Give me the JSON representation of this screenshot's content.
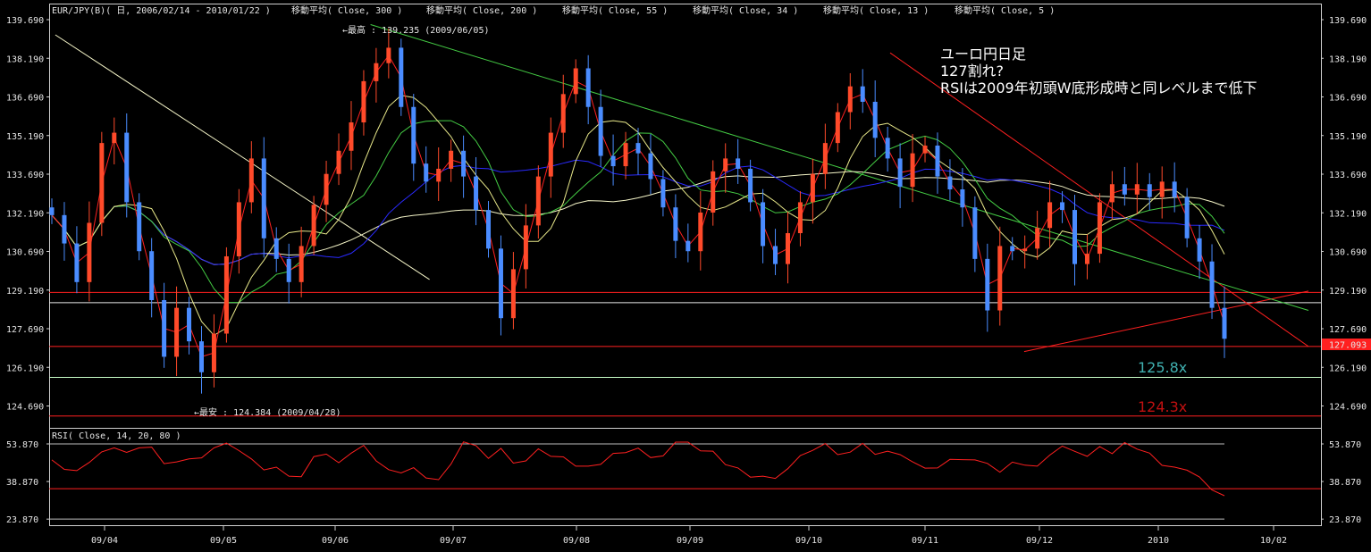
{
  "header": {
    "symbol": "EUR/JPY(B)( 日, 2006/02/14 - 2010/01/22 )",
    "ma300": "移動平均( Close, 300 )",
    "ma200": "移動平均( Close, 200 )",
    "ma55": "移動平均( Close, 55 )",
    "ma34": "移動平均( Close, 34 )",
    "ma13": "移動平均( Close, 13 )",
    "ma5": "移動平均( Close, 5 )"
  },
  "annotations": {
    "high": "←最高 : 139.235 (2009/06/05)",
    "low": "←最安 : 124.384 (2009/04/28)",
    "note1": "ユーロ円日足",
    "note2": "127割れ?",
    "note3": "RSIは2009年初頭W底形成時と同レベルまで低下",
    "target1": "125.8x",
    "target2": "124.3x",
    "current_price": "127.093"
  },
  "rsi_panel": {
    "title": "RSI( Close, 14, 20, 80 )",
    "ticks": [
      "53.870",
      "38.870",
      "23.870"
    ]
  },
  "colors": {
    "background": "#000000",
    "bull_candle": "#ff4a2a",
    "bear_candle": "#4a8cff",
    "ma300": "#f5f5c8",
    "ma200": "#2a2aff",
    "ma55": "#44cc44",
    "ma34": "#e8e88a",
    "ma13": "#e8f090",
    "ma5": "#ff2020",
    "rsi": "#ff2020",
    "hline_red": "#ff2020",
    "hline_white": "#ffffff",
    "hline_green": "#c8ffc8",
    "target1": "#40b0b0",
    "target2": "#c01010"
  },
  "chart_data": {
    "type": "candlestick",
    "title": "EUR/JPY(B)( 日, 2006/02/14 - 2010/01/22 )",
    "y_ticks": [
      "139.690",
      "138.190",
      "136.690",
      "135.190",
      "133.690",
      "132.190",
      "130.690",
      "129.190",
      "127.690",
      "126.190",
      "124.690"
    ],
    "ylim": [
      123.9,
      140.3
    ],
    "x_ticks": [
      "09/04",
      "09/05",
      "09/06",
      "09/07",
      "09/08",
      "09/09",
      "09/10",
      "09/11",
      "09/12",
      "2010",
      "10/02"
    ],
    "horizontal_lines": [
      {
        "value": 129.1,
        "color": "red"
      },
      {
        "value": 128.7,
        "color": "white"
      },
      {
        "value": 127.0,
        "color": "red"
      },
      {
        "value": 125.8,
        "color": "green"
      },
      {
        "value": 124.3,
        "color": "red"
      }
    ],
    "trendlines": [
      {
        "color": "red",
        "from": [
          "2009/10/22",
          138.4
        ],
        "to": [
          "2010/02/10",
          127.0
        ]
      },
      {
        "color": "red",
        "from": [
          "2009/11/27",
          126.8
        ],
        "to": [
          "2010/02/10",
          129.15
        ]
      },
      {
        "color": "green",
        "from": [
          "2009/06/10",
          139.5
        ],
        "to": [
          "2010/02/10",
          128.4
        ]
      },
      {
        "color": "beige",
        "from": [
          "2009/03/02",
          139.1
        ],
        "to": [
          "2009/06/25",
          129.6
        ]
      }
    ],
    "series": [
      {
        "name": "Close",
        "values": [
          132.1,
          131.0,
          129.5,
          131.8,
          134.9,
          135.3,
          132.6,
          130.7,
          128.8,
          126.6,
          128.5,
          127.2,
          126.0,
          127.5,
          130.5,
          132.6,
          134.3,
          131.2,
          130.4,
          129.5,
          130.9,
          132.5,
          133.7,
          134.6,
          135.7,
          137.3,
          138.0,
          138.6,
          136.3,
          134.1,
          133.4,
          133.9,
          134.6,
          133.6,
          132.3,
          130.8,
          128.1,
          130.0,
          131.7,
          133.6,
          135.3,
          136.8,
          137.8,
          136.3,
          134.4,
          134.0,
          134.9,
          134.5,
          133.5,
          132.4,
          131.1,
          130.7,
          132.2,
          133.8,
          134.3,
          133.9,
          132.6,
          130.9,
          130.2,
          131.4,
          132.6,
          133.7,
          134.9,
          136.1,
          137.1,
          136.5,
          135.1,
          134.3,
          133.2,
          134.5,
          134.8,
          133.6,
          133.1,
          132.4,
          130.4,
          128.4,
          130.9,
          130.7,
          130.8,
          131.6,
          132.6,
          132.3,
          130.2,
          130.6,
          132.6,
          133.3,
          132.9,
          133.3,
          132.8,
          133.4,
          132.8,
          131.2,
          130.3,
          128.5,
          127.3
        ]
      },
      {
        "name": "RSI",
        "values": [
          47.5,
          43.7,
          43.2,
          46.5,
          50.7,
          52.3,
          50.5,
          52.3,
          52.6,
          46.0,
          46.7,
          47.9,
          48.3,
          52.3,
          54.2,
          51.2,
          47.9,
          43.5,
          44.6,
          41.0,
          40.8,
          48.8,
          49.8,
          46.4,
          50.2,
          53.3,
          47.1,
          43.6,
          42.3,
          44.4,
          40.3,
          39.6,
          45.8,
          54.7,
          53.2,
          48.1,
          52.1,
          46.2,
          47.1,
          51.9,
          48.9,
          48.7,
          45.0,
          45.0,
          45.7,
          50.1,
          50.4,
          52.2,
          48.4,
          49.1,
          54.6,
          54.6,
          51.1,
          51.0,
          45.6,
          44.3,
          40.6,
          41.0,
          40.1,
          44.0,
          49.2,
          51.3,
          54.0,
          49.6,
          50.6,
          54.1,
          49.7,
          51.0,
          49.6,
          46.7,
          44.2,
          44.3,
          47.7,
          47.6,
          47.5,
          46.1,
          42.6,
          46.6,
          45.4,
          45.0,
          49.4,
          53.0,
          50.9,
          48.9,
          52.8,
          50.0,
          54.4,
          51.8,
          50.2,
          45.3,
          44.6,
          43.4,
          40.7,
          35.5,
          33.2
        ]
      }
    ]
  }
}
